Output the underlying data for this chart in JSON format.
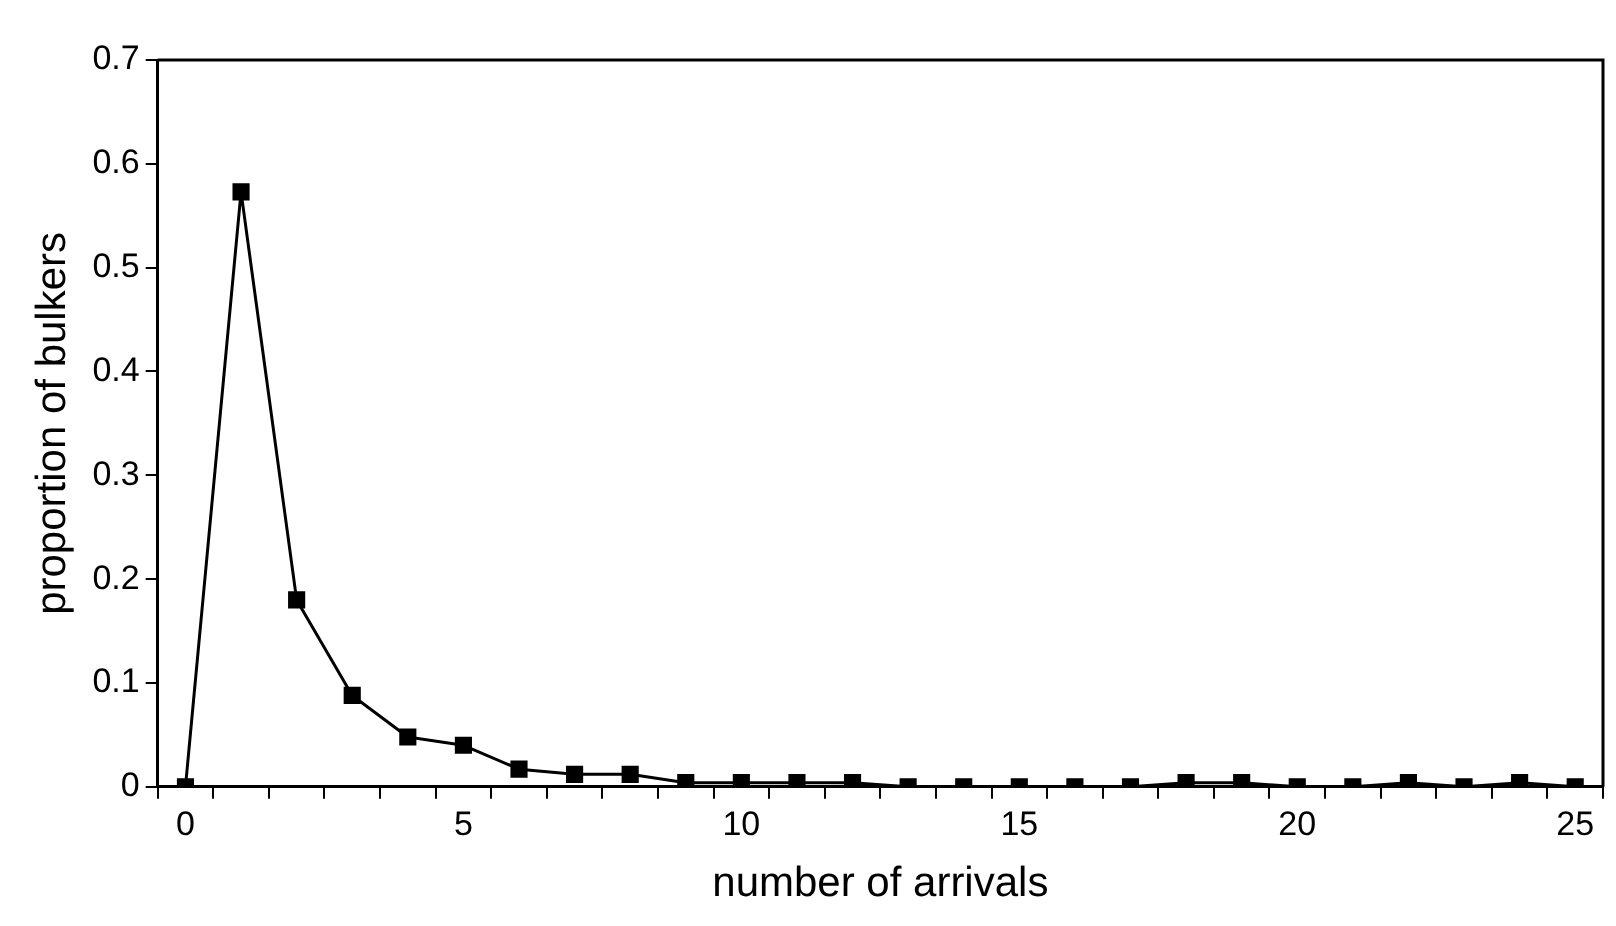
{
  "chart_data": {
    "type": "line",
    "xlabel": "number of arrivals",
    "ylabel": "proportion of bulkers",
    "categories": [
      "0",
      null,
      null,
      null,
      null,
      "5",
      null,
      null,
      null,
      null,
      "10",
      null,
      null,
      null,
      null,
      "15",
      null,
      null,
      null,
      null,
      "20",
      null,
      null,
      null,
      null,
      "25"
    ],
    "series": [
      {
        "color": "#000000",
        "values": [
          0,
          0.573,
          0.18,
          0.088,
          0.048,
          0.04,
          0.017,
          0.012,
          0.012,
          0.004,
          0.004,
          0.004,
          0.004,
          0,
          0,
          0,
          0,
          0,
          0.004,
          0.004,
          0,
          0,
          0.004,
          0,
          0.004,
          0
        ]
      }
    ],
    "ylim": [
      0,
      0.7
    ],
    "yticks": [
      0,
      0.1,
      0.2,
      0.3,
      0.4,
      0.5,
      0.6,
      0.7
    ],
    "grid": false,
    "legend": false,
    "marker": "square",
    "line_style": "solid"
  }
}
